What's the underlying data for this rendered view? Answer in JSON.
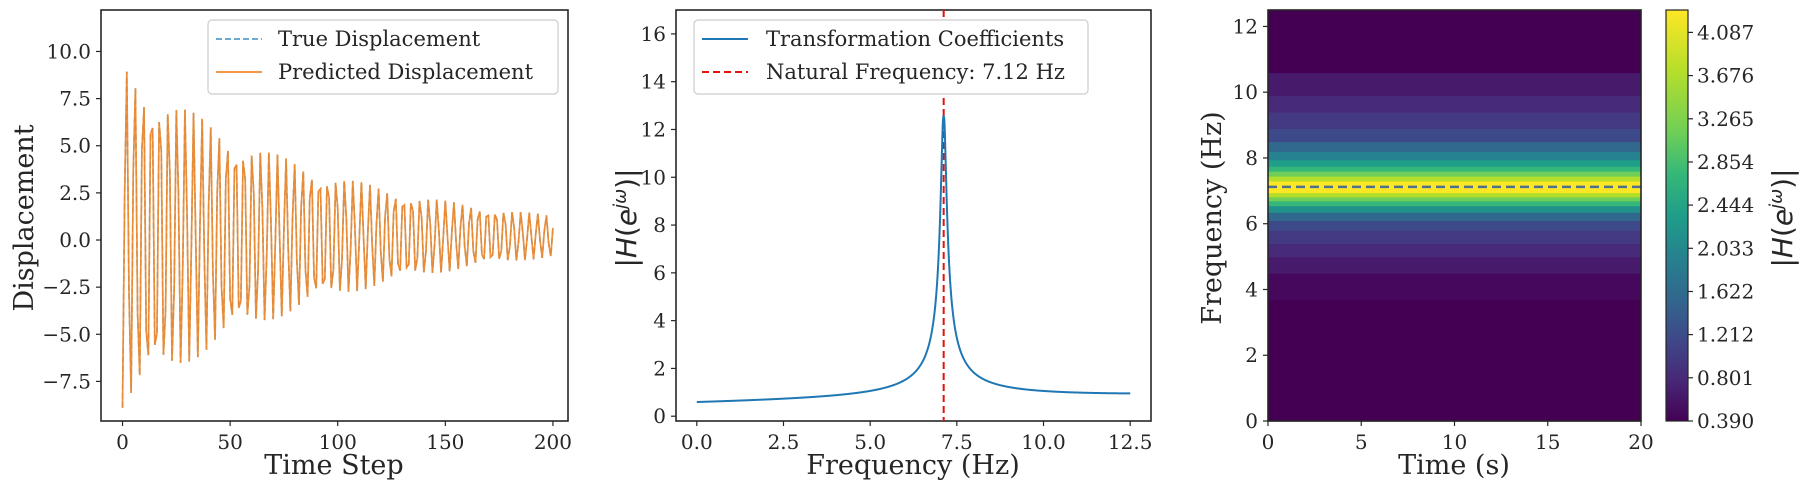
{
  "chart_data": [
    {
      "type": "line",
      "xlabel": "Time Step",
      "ylabel": "Displacement",
      "xlim": [
        -10,
        207
      ],
      "ylim": [
        -9.6,
        12.2
      ],
      "xticks": [
        0,
        50,
        100,
        150,
        200
      ],
      "yticks": [
        -7.5,
        -5.0,
        -2.5,
        0.0,
        2.5,
        5.0,
        7.5,
        10.0
      ],
      "xtick_labels": [
        "0",
        "50",
        "100",
        "150",
        "200"
      ],
      "ytick_labels": [
        "−7.5",
        "−5.0",
        "−2.5",
        "0.0",
        "2.5",
        "5.0",
        "7.5",
        "10.0"
      ],
      "legend_position": "top-right",
      "series": [
        {
          "name": "True Displacement",
          "style": "dashed",
          "color": "#5a9ec9",
          "signal": {
            "samples": 201,
            "amplitude": 9.3,
            "decay": 0.0106,
            "period": 3.9,
            "phase": 3.35,
            "mean": 0.2
          }
        },
        {
          "name": "Predicted Displacement",
          "style": "solid",
          "color": "#f08a2d",
          "signal": {
            "samples": 201,
            "amplitude": 9.3,
            "decay": 0.0106,
            "period": 3.9,
            "phase": 3.35,
            "mean": 0.2
          }
        }
      ]
    },
    {
      "type": "line",
      "xlabel": "Frequency (Hz)",
      "ylabel": "|H(e^jω)|",
      "xlim": [
        -0.6,
        13.1
      ],
      "ylim": [
        -0.2,
        17
      ],
      "xticks": [
        0,
        2.5,
        5,
        7.5,
        10,
        12.5
      ],
      "yticks": [
        0,
        2,
        4,
        6,
        8,
        10,
        12,
        14,
        16
      ],
      "xtick_labels": [
        "0.0",
        "2.5",
        "5.0",
        "7.5",
        "10.0",
        "12.5"
      ],
      "ytick_labels": [
        "0",
        "2",
        "4",
        "6",
        "8",
        "10",
        "12",
        "14",
        "16"
      ],
      "legend_position": "top-left",
      "series": [
        {
          "name": "Transformation Coefficients",
          "style": "solid",
          "color": "#1f77b4",
          "response": {
            "f_start": 0,
            "f_end": 12.5,
            "peak_frequency": 7.12,
            "peak_value": 12.55,
            "baseline": 0.45
          }
        }
      ],
      "annotations": [
        {
          "type": "vline",
          "x": 7.12,
          "label": "Natural Frequency: 7.12 Hz",
          "style": "dashed",
          "color": "#e3120b"
        }
      ]
    },
    {
      "type": "heatmap",
      "xlabel": "Time (s)",
      "ylabel": "Frequency (Hz)",
      "xlim": [
        0,
        20
      ],
      "ylim": [
        0,
        12.5
      ],
      "xticks": [
        0,
        5,
        10,
        15,
        20
      ],
      "yticks": [
        0,
        2,
        4,
        6,
        8,
        10,
        12
      ],
      "xtick_labels": [
        "0",
        "5",
        "10",
        "15",
        "20"
      ],
      "ytick_labels": [
        "0",
        "2",
        "4",
        "6",
        "8",
        "10",
        "12"
      ],
      "hline": {
        "y": 7.12,
        "style": "dashed",
        "color": "#4f6f8f"
      },
      "colorbar": {
        "label": "|H(e^jω)|",
        "ticks": [
          "0.390",
          "0.801",
          "1.212",
          "1.622",
          "2.033",
          "2.444",
          "2.854",
          "3.265",
          "3.676",
          "4.087"
        ],
        "range": [
          0.39,
          4.3
        ]
      },
      "bands": [
        {
          "f0": 0,
          "f1": 3.7,
          "color": "#440154"
        },
        {
          "f0": 3.7,
          "f1": 4.5,
          "color": "#46085c"
        },
        {
          "f0": 4.5,
          "f1": 5.0,
          "color": "#481a6c"
        },
        {
          "f0": 5.0,
          "f1": 5.4,
          "color": "#472a7a"
        },
        {
          "f0": 5.4,
          "f1": 5.8,
          "color": "#443983"
        },
        {
          "f0": 5.8,
          "f1": 6.1,
          "color": "#3e4989"
        },
        {
          "f0": 6.1,
          "f1": 6.35,
          "color": "#31688e"
        },
        {
          "f0": 6.35,
          "f1": 6.55,
          "color": "#21918c"
        },
        {
          "f0": 6.55,
          "f1": 6.7,
          "color": "#35b779"
        },
        {
          "f0": 6.7,
          "f1": 6.82,
          "color": "#6ece58"
        },
        {
          "f0": 6.82,
          "f1": 6.95,
          "color": "#b5de2b"
        },
        {
          "f0": 6.95,
          "f1": 7.1,
          "color": "#fde725"
        },
        {
          "f0": 7.1,
          "f1": 7.3,
          "color": "#fde725"
        },
        {
          "f0": 7.3,
          "f1": 7.45,
          "color": "#b5de2b"
        },
        {
          "f0": 7.45,
          "f1": 7.6,
          "color": "#6ece58"
        },
        {
          "f0": 7.6,
          "f1": 7.75,
          "color": "#35b779"
        },
        {
          "f0": 7.75,
          "f1": 7.95,
          "color": "#1f9e89"
        },
        {
          "f0": 7.95,
          "f1": 8.2,
          "color": "#26828e"
        },
        {
          "f0": 8.2,
          "f1": 8.5,
          "color": "#31688e"
        },
        {
          "f0": 8.5,
          "f1": 8.9,
          "color": "#3e4989"
        },
        {
          "f0": 8.9,
          "f1": 9.4,
          "color": "#443983"
        },
        {
          "f0": 9.4,
          "f1": 9.9,
          "color": "#472a7a"
        },
        {
          "f0": 9.9,
          "f1": 10.6,
          "color": "#481a6c"
        },
        {
          "f0": 10.6,
          "f1": 12.5,
          "color": "#440154"
        }
      ]
    }
  ]
}
